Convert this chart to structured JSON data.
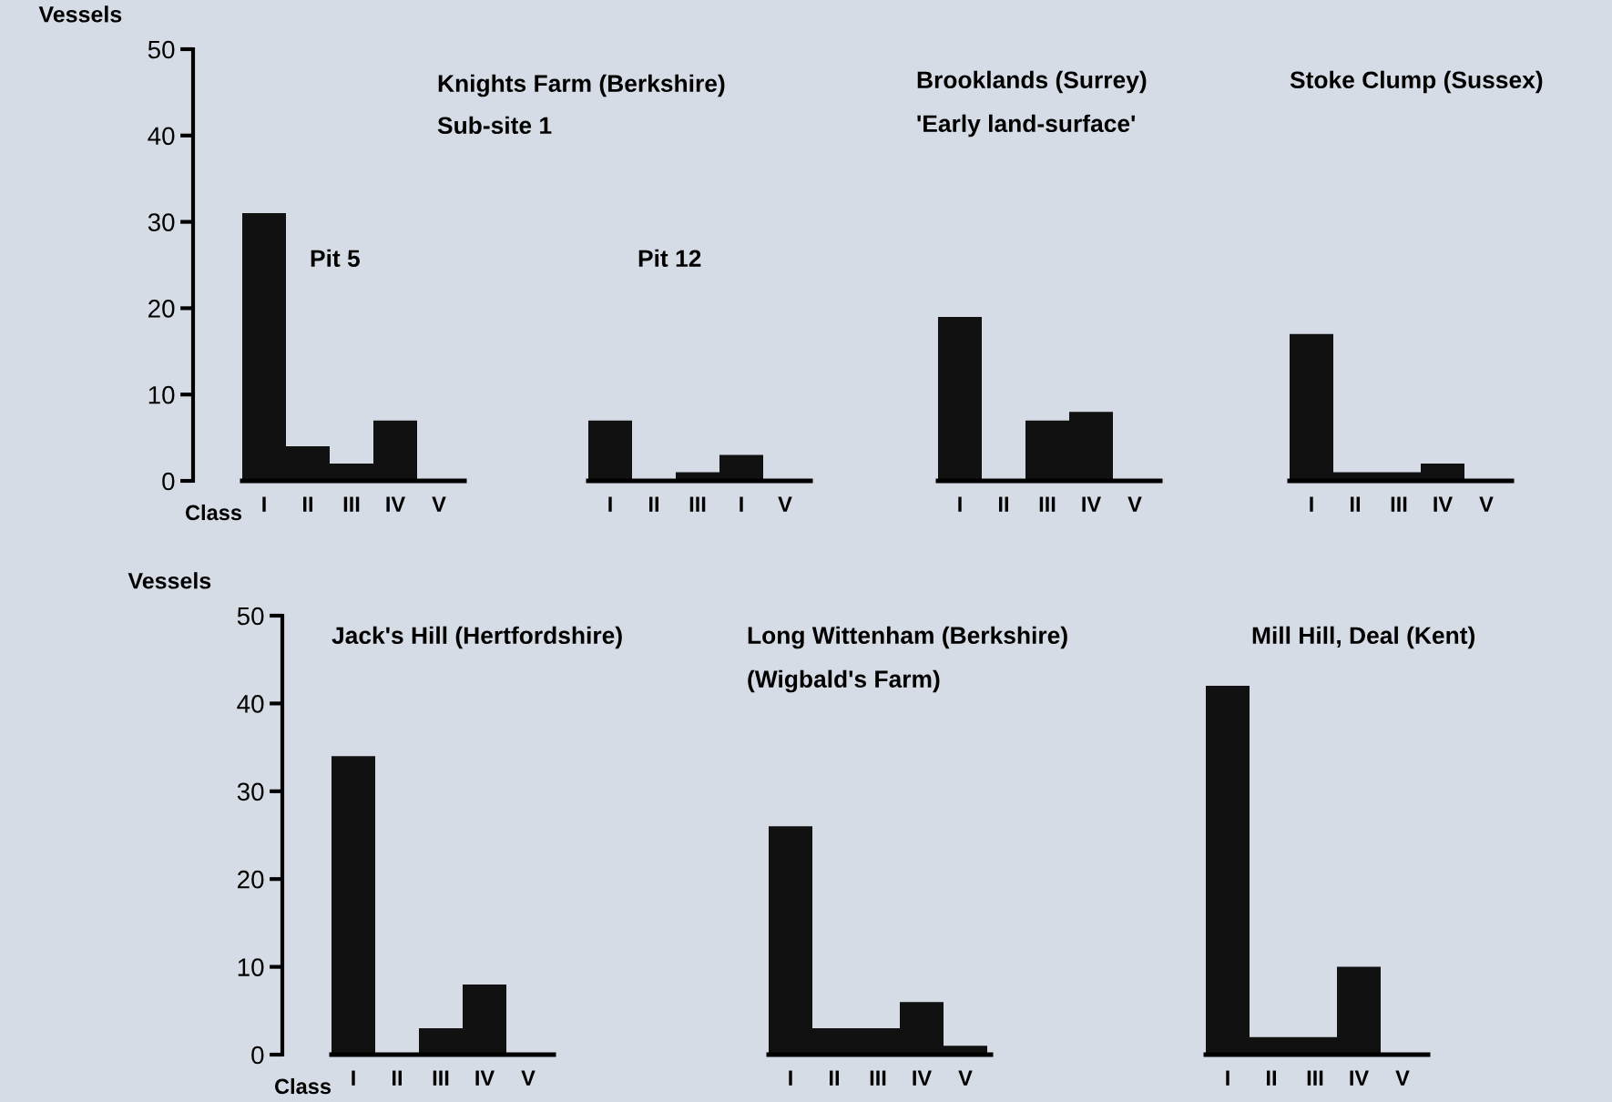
{
  "chart_data": [
    {
      "type": "bar",
      "title": "Pit 5",
      "annotations": [
        "Knights Farm (Berkshire)",
        "Sub-site 1"
      ],
      "ylabel": "Vessels",
      "xlabel": "Class",
      "categories": [
        "I",
        "II",
        "III",
        "IV",
        "V"
      ],
      "values": [
        31,
        4,
        2,
        7,
        0
      ],
      "color": "#111111",
      "ylim": [
        0,
        50
      ],
      "yticks": [
        0,
        10,
        20,
        30,
        40,
        50
      ]
    },
    {
      "type": "bar",
      "title": "Pit 12",
      "categories": [
        "I",
        "II",
        "III",
        "I",
        "V"
      ],
      "values": [
        7,
        0,
        1,
        3,
        0
      ],
      "color": "#111111",
      "ylim": [
        0,
        50
      ],
      "tick_labels": "x"
    },
    {
      "type": "bar",
      "title": "Brooklands (Surrey)",
      "subtitle": "'Early land-surface'",
      "categories": [
        "I",
        "II",
        "III",
        "IV",
        "V"
      ],
      "values": [
        19,
        0,
        7,
        8,
        0
      ],
      "color": "#111111",
      "ylim": [
        0,
        50
      ],
      "tick_labels": "x"
    },
    {
      "type": "bar",
      "title": "Stoke Clump (Sussex)",
      "categories": [
        "I",
        "II",
        "III",
        "IV",
        "V"
      ],
      "values": [
        17,
        1,
        1,
        2,
        0
      ],
      "color": "#111111",
      "ylim": [
        0,
        50
      ],
      "tick_labels": "x"
    },
    {
      "type": "bar",
      "title": "Jack's Hill (Hertfordshire)",
      "ylabel": "Vessels",
      "xlabel": "Class",
      "categories": [
        "I",
        "II",
        "III",
        "IV",
        "V"
      ],
      "values": [
        34,
        0,
        3,
        8,
        0
      ],
      "color": "#111111",
      "ylim": [
        0,
        50
      ],
      "yticks": [
        0,
        10,
        20,
        30,
        40,
        50
      ]
    },
    {
      "type": "bar",
      "title": "Long Wittenham (Berkshire)",
      "subtitle": "(Wigbald's Farm)",
      "categories": [
        "I",
        "II",
        "III",
        "IV",
        "V"
      ],
      "values": [
        26,
        3,
        3,
        6,
        1
      ],
      "color": "#111111",
      "ylim": [
        0,
        50
      ],
      "tick_labels": "x"
    },
    {
      "type": "bar",
      "title": "Mill Hill, Deal (Kent)",
      "categories": [
        "I",
        "II",
        "III",
        "IV",
        "V"
      ],
      "values": [
        42,
        2,
        2,
        10,
        0
      ],
      "color": "#111111",
      "ylim": [
        0,
        50
      ],
      "tick_labels": "x"
    }
  ]
}
